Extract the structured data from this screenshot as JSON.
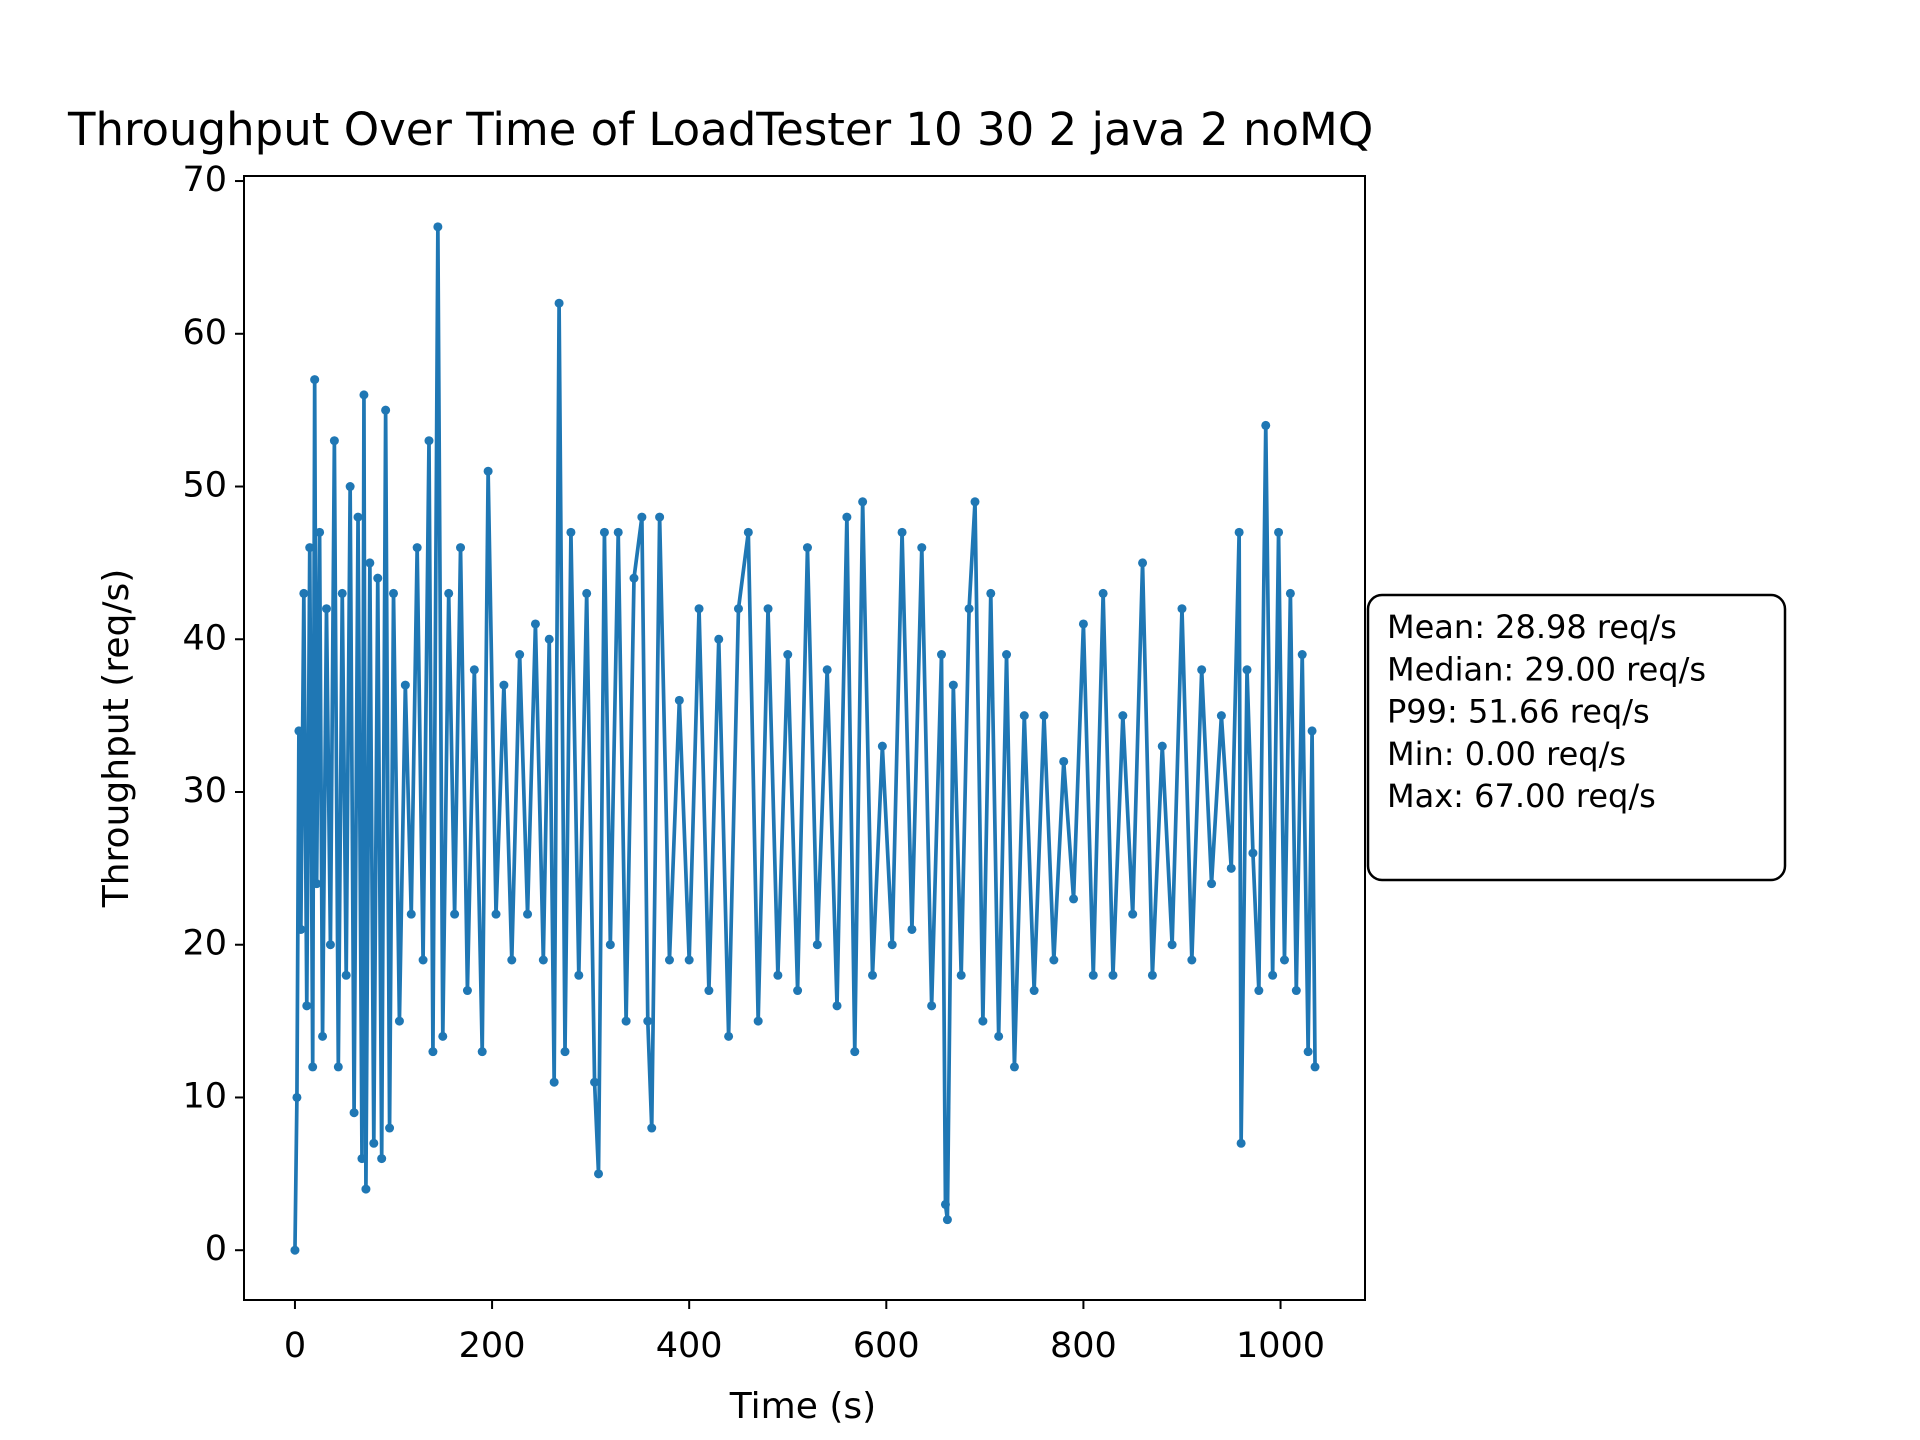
{
  "chart_data": {
    "type": "line",
    "title": "Throughput Over Time of LoadTester 10 30 2 java 2 noMQ",
    "x_label": "Time (s)",
    "y_label": "Throughput (req/s)",
    "xlim": [
      -51.7,
      1085.7
    ],
    "ylim": [
      -3.26,
      70.33
    ],
    "xticks": [
      0,
      200,
      400,
      600,
      800,
      1000
    ],
    "yticks": [
      0,
      10,
      20,
      30,
      40,
      50,
      60,
      70
    ],
    "grid": false,
    "markers": true,
    "annotation_lines": [
      "Mean: 28.98 req/s",
      "Median: 29.00 req/s",
      "P99: 51.66 req/s",
      "Min: 0.00 req/s",
      "Max: 67.00 req/s"
    ],
    "x": [
      0,
      2,
      4,
      6,
      9,
      12,
      15,
      18,
      20,
      22,
      25,
      28,
      32,
      36,
      40,
      44,
      48,
      52,
      56,
      60,
      64,
      68,
      70,
      72,
      76,
      80,
      84,
      88,
      92,
      96,
      100,
      106,
      112,
      118,
      124,
      130,
      136,
      140,
      145,
      150,
      156,
      162,
      168,
      175,
      182,
      190,
      196,
      204,
      212,
      220,
      228,
      236,
      244,
      252,
      258,
      263,
      268,
      274,
      280,
      288,
      296,
      304,
      308,
      314,
      320,
      328,
      336,
      344,
      352,
      358,
      362,
      370,
      380,
      390,
      400,
      410,
      420,
      430,
      440,
      450,
      460,
      470,
      480,
      490,
      500,
      510,
      520,
      530,
      540,
      550,
      560,
      568,
      576,
      586,
      596,
      606,
      616,
      626,
      636,
      646,
      656,
      660,
      662,
      668,
      676,
      684,
      690,
      698,
      706,
      714,
      722,
      730,
      740,
      750,
      760,
      770,
      780,
      790,
      800,
      810,
      820,
      830,
      840,
      850,
      860,
      870,
      880,
      890,
      900,
      910,
      920,
      930,
      940,
      950,
      958,
      960,
      966,
      972,
      978,
      985,
      992,
      998,
      1004,
      1010,
      1016,
      1022,
      1028,
      1032,
      1035
    ],
    "series": [
      {
        "name": "Throughput",
        "color": "#1f77b4",
        "values": [
          0,
          10,
          34,
          21,
          43,
          16,
          46,
          12,
          57,
          24,
          47,
          14,
          42,
          20,
          53,
          12,
          43,
          18,
          50,
          9,
          48,
          6,
          56,
          4,
          45,
          7,
          44,
          6,
          55,
          8,
          43,
          15,
          37,
          22,
          46,
          19,
          53,
          13,
          67,
          14,
          43,
          22,
          46,
          17,
          38,
          13,
          51,
          22,
          37,
          19,
          39,
          22,
          41,
          19,
          40,
          11,
          62,
          13,
          47,
          18,
          43,
          11,
          5,
          47,
          20,
          47,
          15,
          44,
          48,
          15,
          8,
          48,
          19,
          36,
          19,
          42,
          17,
          40,
          14,
          42,
          47,
          15,
          42,
          18,
          39,
          17,
          46,
          20,
          38,
          16,
          48,
          13,
          49,
          18,
          33,
          20,
          47,
          21,
          46,
          16,
          39,
          3,
          2,
          37,
          18,
          42,
          49,
          15,
          43,
          14,
          39,
          12,
          35,
          17,
          35,
          19,
          32,
          23,
          41,
          18,
          43,
          18,
          35,
          22,
          45,
          18,
          33,
          20,
          42,
          19,
          38,
          24,
          35,
          25,
          47,
          7,
          38,
          26,
          17,
          54,
          18,
          47,
          19,
          43,
          17,
          39,
          13,
          34,
          12
        ]
      }
    ]
  }
}
